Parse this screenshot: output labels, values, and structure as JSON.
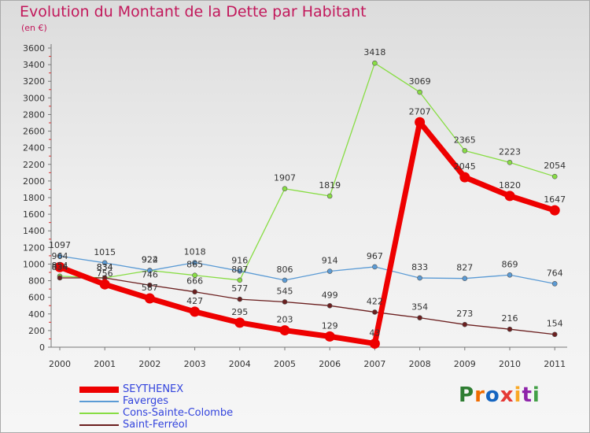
{
  "header": {
    "title": "Evolution du Montant de la Dette par Habitant",
    "subtitle": "(en €)"
  },
  "logo": {
    "text": "Proxiti",
    "colors": [
      "#2e7d32",
      "#ef6c00",
      "#1565c0",
      "#e53935",
      "#f9a825",
      "#8e24aa",
      "#43a047"
    ]
  },
  "chart_data": {
    "type": "line",
    "title": "Evolution du Montant de la Dette par Habitant",
    "subtitle": "(en €)",
    "xlabel": "",
    "ylabel": "",
    "x": [
      "2000",
      "2001",
      "2002",
      "2003",
      "2004",
      "2005",
      "2006",
      "2007",
      "2008",
      "2009",
      "2010",
      "2011"
    ],
    "ylim": [
      0,
      3600
    ],
    "yticks": [
      0,
      200,
      400,
      600,
      800,
      1000,
      1200,
      1400,
      1600,
      1800,
      2000,
      2200,
      2400,
      2600,
      2800,
      3000,
      3200,
      3400,
      3600
    ],
    "grid": false,
    "legend_position": "bottom-left",
    "series": [
      {
        "name": "SEYTHENEX",
        "color": "#ee0000",
        "values": [
          964,
          756,
          587,
          427,
          295,
          203,
          129,
          43,
          2707,
          2045,
          1820,
          1647
        ]
      },
      {
        "name": "Faverges",
        "color": "#5b9bd5",
        "values": [
          1097,
          1015,
          922,
          1018,
          916,
          806,
          914,
          967,
          833,
          827,
          869,
          764
        ]
      },
      {
        "name": "Cons-Sainte-Colombe",
        "color": "#88dd44",
        "values": [
          854,
          834,
          924,
          865,
          807,
          1907,
          1819,
          3418,
          3069,
          2365,
          2223,
          2054
        ]
      },
      {
        "name": "Saint-Ferréol",
        "color": "#6b1f1f",
        "values": [
          834,
          834,
          746,
          666,
          577,
          545,
          499,
          422,
          354,
          273,
          216,
          154
        ]
      }
    ]
  }
}
